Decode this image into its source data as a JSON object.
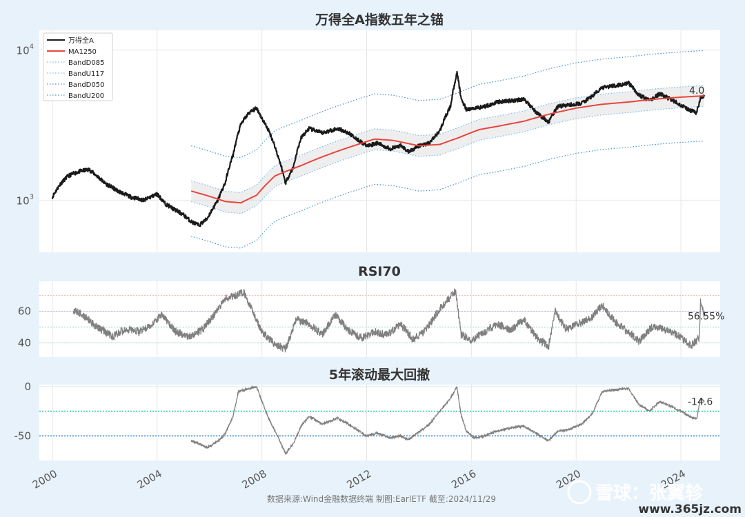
{
  "chart_data": [
    {
      "type": "line",
      "title": "万得全A指数五年之锚",
      "yscale": "log",
      "ylim": [
        450,
        13500
      ],
      "xlim": [
        1999.5,
        2025.5
      ],
      "x_ticks": [
        2000,
        2004,
        2008,
        2012,
        2016,
        2020,
        2024
      ],
      "y_ticks": [
        {
          "value": 1000,
          "base": "10",
          "exp": "3"
        },
        {
          "value": 10000,
          "base": "10",
          "exp": "4"
        }
      ],
      "end_label": "4.0",
      "legend": {
        "position": "top-left",
        "entries": [
          {
            "name": "万得全A",
            "color": "#1a1a1a",
            "style": "solid"
          },
          {
            "name": "MA1250",
            "color": "#e8453c",
            "style": "solid"
          },
          {
            "name": "BandD085",
            "color": "#7ab8e8",
            "style": "dotted"
          },
          {
            "name": "BandU117",
            "color": "#7ab8e8",
            "style": "dotted"
          },
          {
            "name": "BandD050",
            "color": "#3a8fd6",
            "style": "dotted"
          },
          {
            "name": "BandU200",
            "color": "#3a8fd6",
            "style": "dotted"
          }
        ]
      },
      "series": [
        {
          "name": "万得全A",
          "color": "#1a1a1a",
          "x": [
            2000.0,
            2000.3,
            2000.6,
            2001.0,
            2001.4,
            2001.7,
            2002.0,
            2002.5,
            2003.0,
            2003.5,
            2004.0,
            2004.3,
            2004.6,
            2005.0,
            2005.3,
            2005.6,
            2005.9,
            2006.3,
            2006.6,
            2006.9,
            2007.2,
            2007.5,
            2007.8,
            2008.0,
            2008.3,
            2008.6,
            2008.9,
            2009.2,
            2009.5,
            2009.8,
            2010.3,
            2010.6,
            2010.9,
            2011.3,
            2011.7,
            2012.0,
            2012.4,
            2012.9,
            2013.3,
            2013.6,
            2014.0,
            2014.4,
            2014.8,
            2015.2,
            2015.45,
            2015.6,
            2015.8,
            2016.1,
            2016.5,
            2017.0,
            2017.5,
            2018.0,
            2018.5,
            2018.95,
            2019.3,
            2019.7,
            2020.2,
            2020.6,
            2021.0,
            2021.5,
            2022.0,
            2022.4,
            2022.8,
            2023.2,
            2023.6,
            2024.0,
            2024.3,
            2024.6,
            2024.75,
            2024.9
          ],
          "y": [
            1050,
            1280,
            1450,
            1550,
            1600,
            1450,
            1300,
            1150,
            1050,
            1000,
            1100,
            950,
            880,
            800,
            720,
            680,
            750,
            980,
            1300,
            2000,
            3200,
            3800,
            4100,
            3500,
            2800,
            2000,
            1300,
            1650,
            2600,
            3000,
            2800,
            2900,
            3000,
            2800,
            2500,
            2300,
            2400,
            2200,
            2300,
            2100,
            2300,
            2400,
            2900,
            4200,
            7000,
            4800,
            4000,
            4100,
            4200,
            4500,
            4600,
            4700,
            3800,
            3300,
            4200,
            4300,
            4400,
            4900,
            5600,
            5800,
            6000,
            5000,
            4600,
            5100,
            4700,
            4300,
            4000,
            3800,
            4800,
            5000
          ]
        },
        {
          "name": "MA1250",
          "color": "#e8453c",
          "x": [
            2005.3,
            2006.0,
            2006.6,
            2007.2,
            2007.8,
            2008.5,
            2009.5,
            2010.5,
            2011.5,
            2012.3,
            2013.0,
            2014.0,
            2014.8,
            2015.5,
            2016.3,
            2017.0,
            2018.0,
            2019.0,
            2020.0,
            2021.0,
            2022.0,
            2023.0,
            2024.0,
            2024.9
          ],
          "y": [
            1150,
            1060,
            980,
            960,
            1080,
            1450,
            1700,
            2000,
            2300,
            2550,
            2500,
            2300,
            2350,
            2600,
            2950,
            3100,
            3350,
            3750,
            4100,
            4350,
            4500,
            4700,
            4850,
            4950
          ]
        }
      ],
      "bands": [
        {
          "name": "BandD085",
          "factor": 0.85,
          "color": "#7ab8e8"
        },
        {
          "name": "BandU117",
          "factor": 1.17,
          "color": "#7ab8e8"
        },
        {
          "name": "BandD050",
          "factor": 0.5,
          "color": "#3a8fd6"
        },
        {
          "name": "BandU200",
          "factor": 2.0,
          "color": "#3a8fd6"
        }
      ]
    },
    {
      "type": "line",
      "title": "RSI70",
      "ylim": [
        31,
        79
      ],
      "xlim": [
        1999.5,
        2025.5
      ],
      "y_ticks": [
        40,
        60
      ],
      "ref_lines": [
        {
          "value": 70,
          "color": "#f0b0b0"
        },
        {
          "value": 60,
          "color": "#b8b8e0"
        },
        {
          "value": 50,
          "color": "#8fe0d0"
        },
        {
          "value": 40,
          "color": "#a8dcc0"
        }
      ],
      "end_label": "56.55%",
      "series": [
        {
          "name": "RSI70",
          "color": "#808080",
          "x": [
            2000.8,
            2001.2,
            2001.7,
            2002.3,
            2002.8,
            2003.3,
            2003.8,
            2004.2,
            2004.7,
            2005.2,
            2005.7,
            2006.2,
            2006.6,
            2007.0,
            2007.3,
            2007.6,
            2008.0,
            2008.5,
            2008.9,
            2009.3,
            2009.8,
            2010.3,
            2010.8,
            2011.3,
            2011.8,
            2012.3,
            2012.8,
            2013.3,
            2013.8,
            2014.3,
            2014.8,
            2015.1,
            2015.4,
            2015.6,
            2016.0,
            2016.5,
            2017.0,
            2017.5,
            2018.0,
            2018.5,
            2018.95,
            2019.2,
            2019.6,
            2020.1,
            2020.6,
            2021.0,
            2021.5,
            2022.0,
            2022.4,
            2022.9,
            2023.3,
            2023.8,
            2024.1,
            2024.4,
            2024.7,
            2024.75,
            2024.9
          ],
          "y": [
            61,
            57,
            50,
            44,
            49,
            47,
            52,
            58,
            47,
            44,
            48,
            58,
            68,
            70,
            72,
            62,
            47,
            39,
            36,
            55,
            52,
            45,
            58,
            48,
            43,
            47,
            45,
            52,
            42,
            49,
            62,
            67,
            73,
            45,
            42,
            47,
            52,
            48,
            55,
            43,
            38,
            60,
            49,
            52,
            56,
            64,
            53,
            47,
            41,
            50,
            49,
            46,
            42,
            38,
            43,
            66,
            57
          ]
        }
      ]
    },
    {
      "type": "line",
      "title": "5年滚动最大回撤",
      "ylim": [
        -75,
        2
      ],
      "xlim": [
        1999.5,
        2025.5
      ],
      "y_ticks": [
        -50,
        0
      ],
      "ref_lines": [
        {
          "value": -25,
          "color": "#2fd4b0"
        },
        {
          "value": -50,
          "color": "#3a8fd6"
        }
      ],
      "end_label": "-14.6",
      "series": [
        {
          "name": "5年滚动最大回撤",
          "color": "#808080",
          "x": [
            2005.3,
            2005.6,
            2005.9,
            2006.3,
            2006.6,
            2006.9,
            2007.1,
            2007.5,
            2007.8,
            2008.0,
            2008.3,
            2008.6,
            2008.9,
            2009.2,
            2009.5,
            2009.8,
            2010.3,
            2010.6,
            2010.9,
            2011.3,
            2011.7,
            2012.0,
            2012.4,
            2012.9,
            2013.3,
            2013.6,
            2014.0,
            2014.4,
            2014.8,
            2015.2,
            2015.45,
            2015.6,
            2015.8,
            2016.1,
            2016.5,
            2017.0,
            2017.5,
            2018.0,
            2018.5,
            2018.95,
            2019.3,
            2019.7,
            2020.2,
            2020.6,
            2021.0,
            2021.5,
            2022.0,
            2022.4,
            2022.8,
            2023.2,
            2023.6,
            2024.0,
            2024.3,
            2024.6,
            2024.75,
            2024.9
          ],
          "y": [
            -55,
            -58,
            -62,
            -56,
            -48,
            -30,
            -5,
            -2,
            0,
            -15,
            -35,
            -50,
            -68,
            -58,
            -40,
            -30,
            -38,
            -35,
            -32,
            -38,
            -45,
            -50,
            -47,
            -52,
            -50,
            -54,
            -46,
            -38,
            -25,
            -12,
            0,
            -28,
            -45,
            -52,
            -50,
            -45,
            -42,
            -40,
            -48,
            -55,
            -45,
            -44,
            -38,
            -28,
            -5,
            -3,
            -2,
            -18,
            -25,
            -15,
            -20,
            -25,
            -30,
            -33,
            -12,
            -15
          ]
        }
      ]
    }
  ],
  "footer": "数据来源:Wind金融数据终端  制图:EarlETF 截至:2024/11/29",
  "watermark": {
    "text": "雪球：张翼轸",
    "site": "www.365jz.com"
  }
}
